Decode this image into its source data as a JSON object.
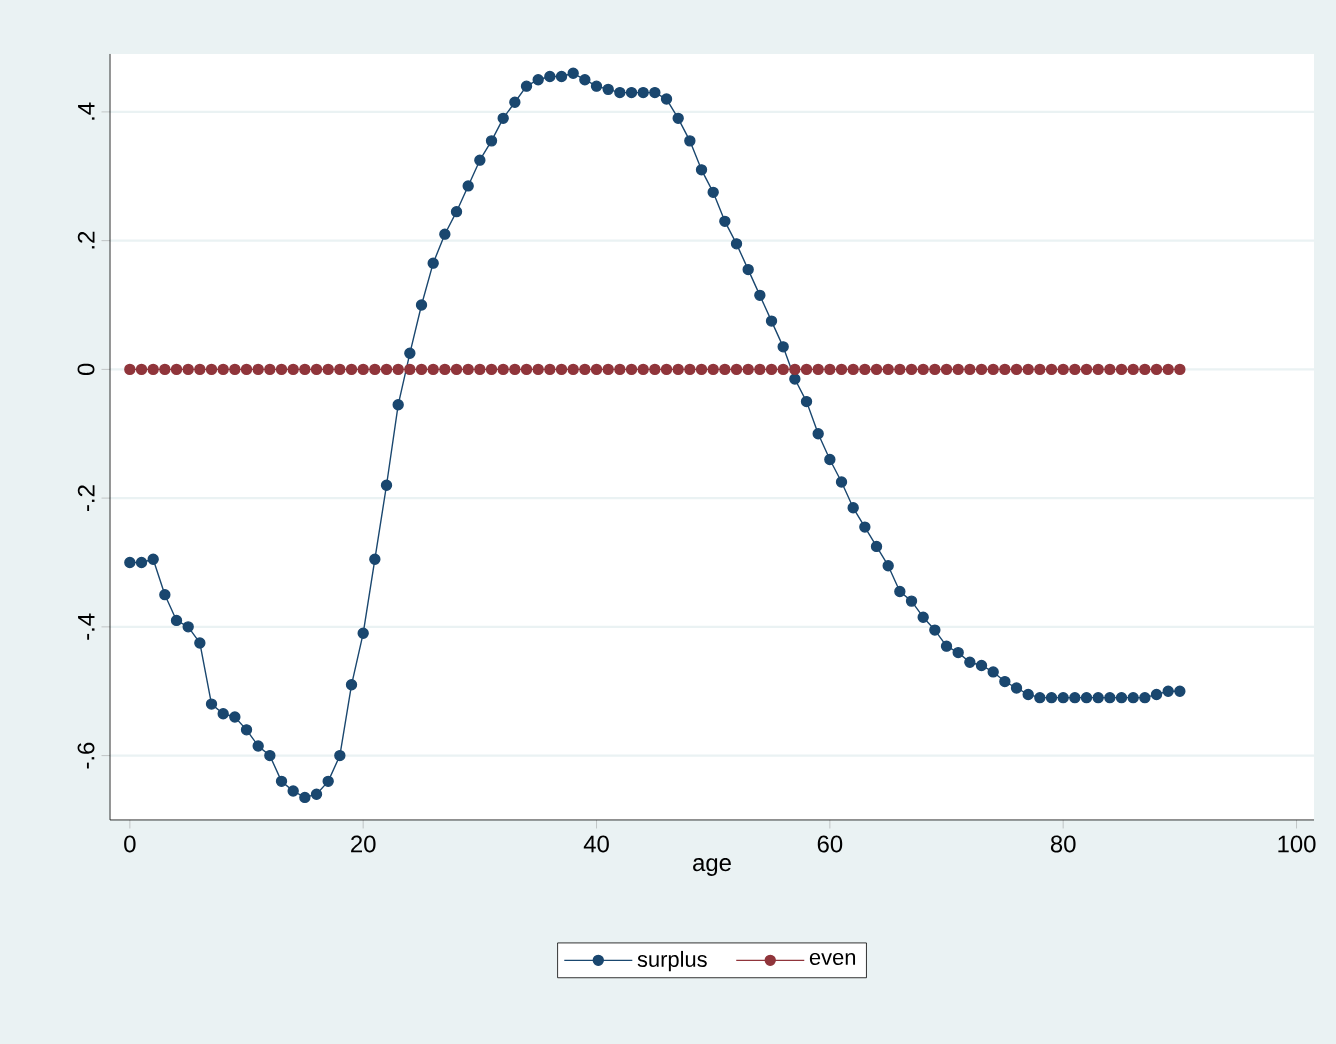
{
  "chart_data": {
    "type": "line",
    "xlabel": "age",
    "x": [
      0,
      1,
      2,
      3,
      4,
      5,
      6,
      7,
      8,
      9,
      10,
      11,
      12,
      13,
      14,
      15,
      16,
      17,
      18,
      19,
      20,
      21,
      22,
      23,
      24,
      25,
      26,
      27,
      28,
      29,
      30,
      31,
      32,
      33,
      34,
      35,
      36,
      37,
      38,
      39,
      40,
      41,
      42,
      43,
      44,
      45,
      46,
      47,
      48,
      49,
      50,
      51,
      52,
      53,
      54,
      55,
      56,
      57,
      58,
      59,
      60,
      61,
      62,
      63,
      64,
      65,
      66,
      67,
      68,
      69,
      70,
      71,
      72,
      73,
      74,
      75,
      76,
      77,
      78,
      79,
      80,
      81,
      82,
      83,
      84,
      85,
      86,
      87,
      88,
      89,
      90
    ],
    "series": [
      {
        "name": "surplus",
        "color": "#1a476f",
        "values": [
          -0.3,
          -0.3,
          -0.295,
          -0.35,
          -0.39,
          -0.4,
          -0.425,
          -0.52,
          -0.535,
          -0.54,
          -0.56,
          -0.585,
          -0.6,
          -0.64,
          -0.655,
          -0.665,
          -0.66,
          -0.64,
          -0.6,
          -0.49,
          -0.41,
          -0.295,
          -0.18,
          -0.055,
          0.025,
          0.1,
          0.165,
          0.21,
          0.245,
          0.285,
          0.325,
          0.355,
          0.39,
          0.415,
          0.44,
          0.45,
          0.455,
          0.455,
          0.46,
          0.45,
          0.44,
          0.435,
          0.43,
          0.43,
          0.43,
          0.43,
          0.42,
          0.39,
          0.355,
          0.31,
          0.275,
          0.23,
          0.195,
          0.155,
          0.115,
          0.075,
          0.035,
          -0.015,
          -0.05,
          -0.1,
          -0.14,
          -0.175,
          -0.215,
          -0.245,
          -0.275,
          -0.305,
          -0.345,
          -0.36,
          -0.385,
          -0.405,
          -0.43,
          -0.44,
          -0.455,
          -0.46,
          -0.47,
          -0.485,
          -0.495,
          -0.505,
          -0.51,
          -0.51,
          -0.51,
          -0.51,
          -0.51,
          -0.51,
          -0.51,
          -0.51,
          -0.51,
          -0.51,
          -0.505,
          -0.5,
          -0.5
        ]
      },
      {
        "name": "even",
        "color": "#90353b",
        "values": [
          0,
          0,
          0,
          0,
          0,
          0,
          0,
          0,
          0,
          0,
          0,
          0,
          0,
          0,
          0,
          0,
          0,
          0,
          0,
          0,
          0,
          0,
          0,
          0,
          0,
          0,
          0,
          0,
          0,
          0,
          0,
          0,
          0,
          0,
          0,
          0,
          0,
          0,
          0,
          0,
          0,
          0,
          0,
          0,
          0,
          0,
          0,
          0,
          0,
          0,
          0,
          0,
          0,
          0,
          0,
          0,
          0,
          0,
          0,
          0,
          0,
          0,
          0,
          0,
          0,
          0,
          0,
          0,
          0,
          0,
          0,
          0,
          0,
          0,
          0,
          0,
          0,
          0,
          0,
          0,
          0,
          0,
          0,
          0,
          0,
          0,
          0,
          0,
          0,
          0,
          0
        ]
      }
    ],
    "xlim": [
      -1.7,
      101.5
    ],
    "ylim": [
      -0.7,
      0.49
    ],
    "xticks": [
      0,
      20,
      40,
      60,
      80,
      100
    ],
    "yticks": [
      {
        "value": -0.6,
        "label": "-.6"
      },
      {
        "value": -0.4,
        "label": "-.4"
      },
      {
        "value": -0.2,
        "label": "-.2"
      },
      0,
      {
        "value": 0.2,
        "label": ".2"
      },
      {
        "value": 0.4,
        "label": ".4"
      }
    ],
    "grid": "y",
    "legend": "bottom",
    "marker": "circle",
    "line_style": "solid"
  }
}
